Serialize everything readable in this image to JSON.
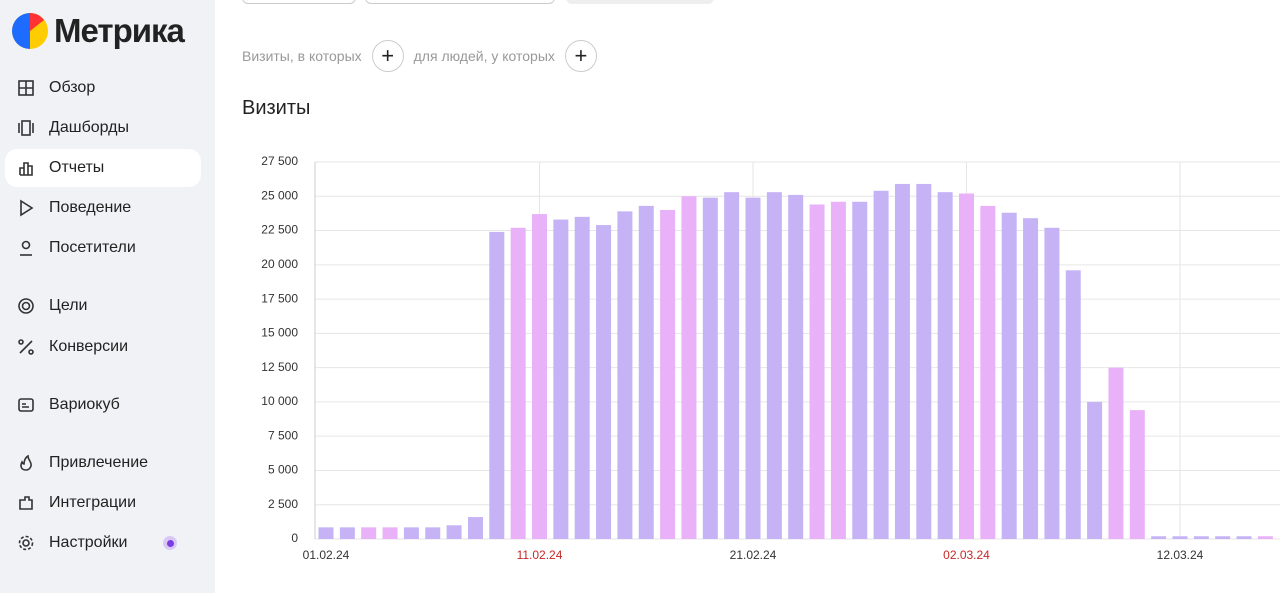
{
  "sidebar": {
    "logo": "Метрика",
    "items": [
      "Обзор",
      "Дашборды",
      "Отчеты",
      "Поведение",
      "Посетители",
      "Цели",
      "Конверсии",
      "Вариокуб",
      "Привлечение",
      "Интеграции",
      "Настройки"
    ],
    "active": 2
  },
  "filters": {
    "visits": "Визиты, в которых",
    "people": "для людей, у которых"
  },
  "chart_data": {
    "type": "bar",
    "title": "Визиты",
    "categories": [
      "01.02.24",
      null,
      null,
      null,
      null,
      null,
      null,
      null,
      null,
      null,
      "11.02.24",
      null,
      null,
      null,
      null,
      null,
      null,
      null,
      null,
      null,
      "21.02.24",
      null,
      null,
      null,
      null,
      null,
      null,
      null,
      null,
      null,
      "02.03.24",
      null,
      null,
      null,
      null,
      null,
      null,
      null,
      null,
      null,
      "12.03.24",
      null,
      null,
      null,
      null
    ],
    "values": [
      850,
      850,
      850,
      850,
      850,
      850,
      1000,
      1600,
      22400,
      22700,
      23700,
      23300,
      23500,
      22900,
      23900,
      24300,
      24000,
      25000,
      24900,
      25300,
      24900,
      25300,
      25100,
      24400,
      24600,
      24600,
      25400,
      25900,
      25900,
      25300,
      25200,
      24300,
      23800,
      23400,
      22700,
      19600,
      10000,
      12500,
      9400,
      200,
      200,
      200,
      200,
      200,
      200
    ],
    "colors": [
      "#c5b3f6",
      "#c5b3f6",
      "#e9b1f8",
      "#e9b1f8",
      "#c5b3f6",
      "#c5b3f6",
      "#c5b3f6",
      "#c5b3f6",
      "#c5b3f6",
      "#e9b1f8",
      "#e9b1f8",
      "#c5b3f6",
      "#c5b3f6",
      "#c5b3f6",
      "#c5b3f6",
      "#c5b3f6",
      "#e9b1f8",
      "#e9b1f8",
      "#c5b3f6",
      "#c5b3f6",
      "#c5b3f6",
      "#c5b3f6",
      "#c5b3f6",
      "#e9b1f8",
      "#e9b1f8",
      "#c5b3f6",
      "#c5b3f6",
      "#c5b3f6",
      "#c5b3f6",
      "#c5b3f6",
      "#e9b1f8",
      "#e9b1f8",
      "#c5b3f6",
      "#c5b3f6",
      "#c5b3f6",
      "#c5b3f6",
      "#c5b3f6",
      "#e9b1f8",
      "#e9b1f8",
      "#c5b3f6",
      "#c5b3f6",
      "#c5b3f6",
      "#c5b3f6",
      "#c5b3f6",
      "#e9b1f8"
    ],
    "weekend_color": "#e9b1f8",
    "weekend_label_color": "#c62828",
    "label_color": "#333333",
    "ylim": [
      0,
      27500
    ],
    "yticks": [
      0,
      {
        "value": 2500,
        "label": "2 500"
      },
      {
        "value": 5000,
        "label": "5 000"
      },
      {
        "value": 7500,
        "label": "7 500"
      },
      {
        "value": 10000,
        "label": "10 000"
      },
      {
        "value": 12500,
        "label": "12 500"
      },
      {
        "value": 15000,
        "label": "15 000"
      },
      {
        "value": 17500,
        "label": "17 500"
      },
      {
        "value": 20000,
        "label": "20 000"
      },
      {
        "value": 22500,
        "label": "22 500"
      },
      {
        "value": 25000,
        "label": "25 000"
      },
      {
        "value": 27500,
        "label": "27 500"
      }
    ],
    "grid": true
  }
}
